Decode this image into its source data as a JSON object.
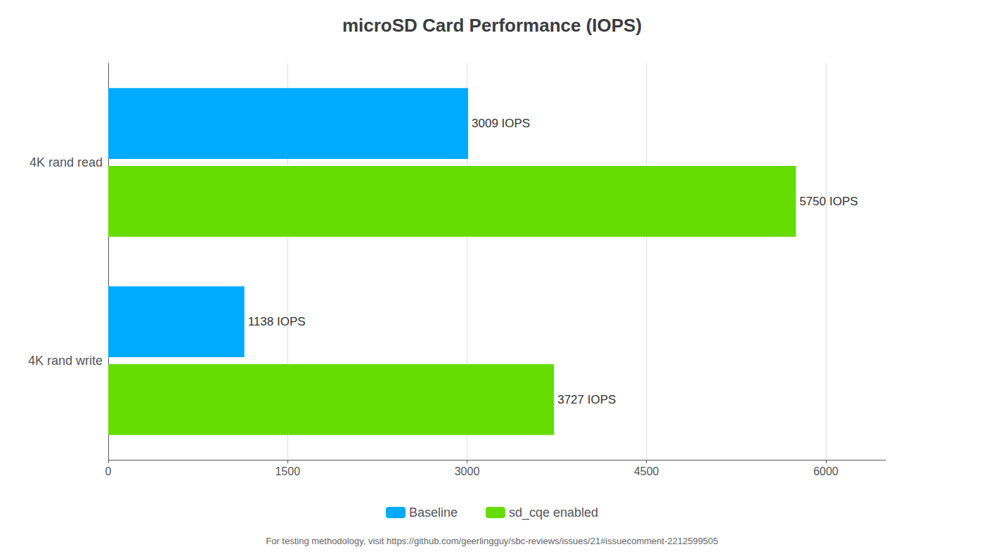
{
  "chart_data": {
    "type": "bar",
    "orientation": "horizontal",
    "title": "microSD Card Performance (IOPS)",
    "categories": [
      "4K rand read",
      "4K rand write"
    ],
    "series": [
      {
        "name": "Baseline",
        "color": "#00AAFF",
        "values": [
          3009,
          1138
        ],
        "value_labels": [
          "3009 IOPS",
          "1138 IOPS"
        ]
      },
      {
        "name": "sd_cqe enabled",
        "color": "#66DD00",
        "values": [
          5750,
          3727
        ],
        "value_labels": [
          "5750 IOPS",
          "3727 IOPS"
        ]
      }
    ],
    "xlim": [
      0,
      6500
    ],
    "xticks": [
      0,
      1500,
      3000,
      4500,
      6000
    ],
    "grid": true,
    "legend": "bottom",
    "data_labels": true,
    "annotations": [
      "For testing methodology, visit https://github.com/geerlingguy/sbc-reviews/issues/21#issuecomment-2212599505"
    ]
  }
}
